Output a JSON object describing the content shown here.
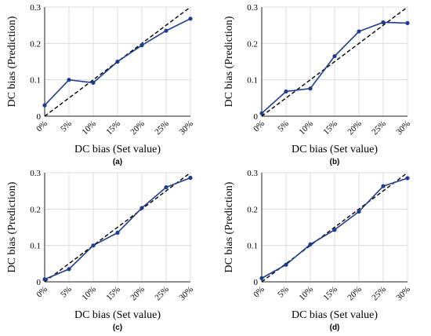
{
  "colors": {
    "series": "#1f3d8c",
    "reference": "#000000",
    "grid": "#dcdcdc"
  },
  "chart_data": [
    {
      "type": "line",
      "panel_label": "(a)",
      "xlabel": "DC bias (Set value)",
      "ylabel": "DC bias (Prediction)",
      "categories": [
        "0%",
        "5%",
        "10%",
        "15%",
        "20%",
        "25%",
        "30%"
      ],
      "x": [
        0,
        0.05,
        0.1,
        0.15,
        0.2,
        0.25,
        0.3
      ],
      "values": [
        0.03,
        0.1,
        0.092,
        0.15,
        0.195,
        0.235,
        0.268
      ],
      "reference": "y = x",
      "ylim": [
        0,
        0.3
      ],
      "yticks": [
        "0",
        "0.1",
        "0.2",
        "0.3"
      ],
      "grid": true
    },
    {
      "type": "line",
      "panel_label": "(b)",
      "xlabel": "DC bias (Set value)",
      "ylabel": "DC bias (Prediction)",
      "categories": [
        "0%",
        "5%",
        "10%",
        "15%",
        "20%",
        "25%",
        "30%"
      ],
      "x": [
        0,
        0.05,
        0.1,
        0.15,
        0.2,
        0.25,
        0.3
      ],
      "values": [
        0.008,
        0.068,
        0.076,
        0.165,
        0.233,
        0.258,
        0.256
      ],
      "reference": "y = x",
      "ylim": [
        0,
        0.3
      ],
      "yticks": [
        "0",
        "0.1",
        "0.2",
        "0.3"
      ],
      "grid": true
    },
    {
      "type": "line",
      "panel_label": "(c)",
      "xlabel": "DC bias (Set value)",
      "ylabel": "DC bias (Prediction)",
      "categories": [
        "0%",
        "5%",
        "10%",
        "15%",
        "20%",
        "25%",
        "30%"
      ],
      "x": [
        0,
        0.05,
        0.1,
        0.15,
        0.2,
        0.25,
        0.3
      ],
      "values": [
        0.007,
        0.035,
        0.1,
        0.135,
        0.203,
        0.26,
        0.286
      ],
      "reference": "y = x",
      "ylim": [
        0,
        0.3
      ],
      "yticks": [
        "0",
        "0.1",
        "0.2",
        "0.3"
      ],
      "grid": true
    },
    {
      "type": "line",
      "panel_label": "(d)",
      "xlabel": "DC bias (Set value)",
      "ylabel": "DC bias (Prediction)",
      "categories": [
        "0%",
        "5%",
        "10%",
        "15%",
        "20%",
        "25%",
        "30%"
      ],
      "x": [
        0,
        0.05,
        0.1,
        0.15,
        0.2,
        0.25,
        0.3
      ],
      "values": [
        0.01,
        0.047,
        0.103,
        0.143,
        0.193,
        0.263,
        0.285
      ],
      "reference": "y = x",
      "ylim": [
        0,
        0.3
      ],
      "yticks": [
        "0",
        "0.1",
        "0.2",
        "0.3"
      ],
      "grid": true
    }
  ]
}
